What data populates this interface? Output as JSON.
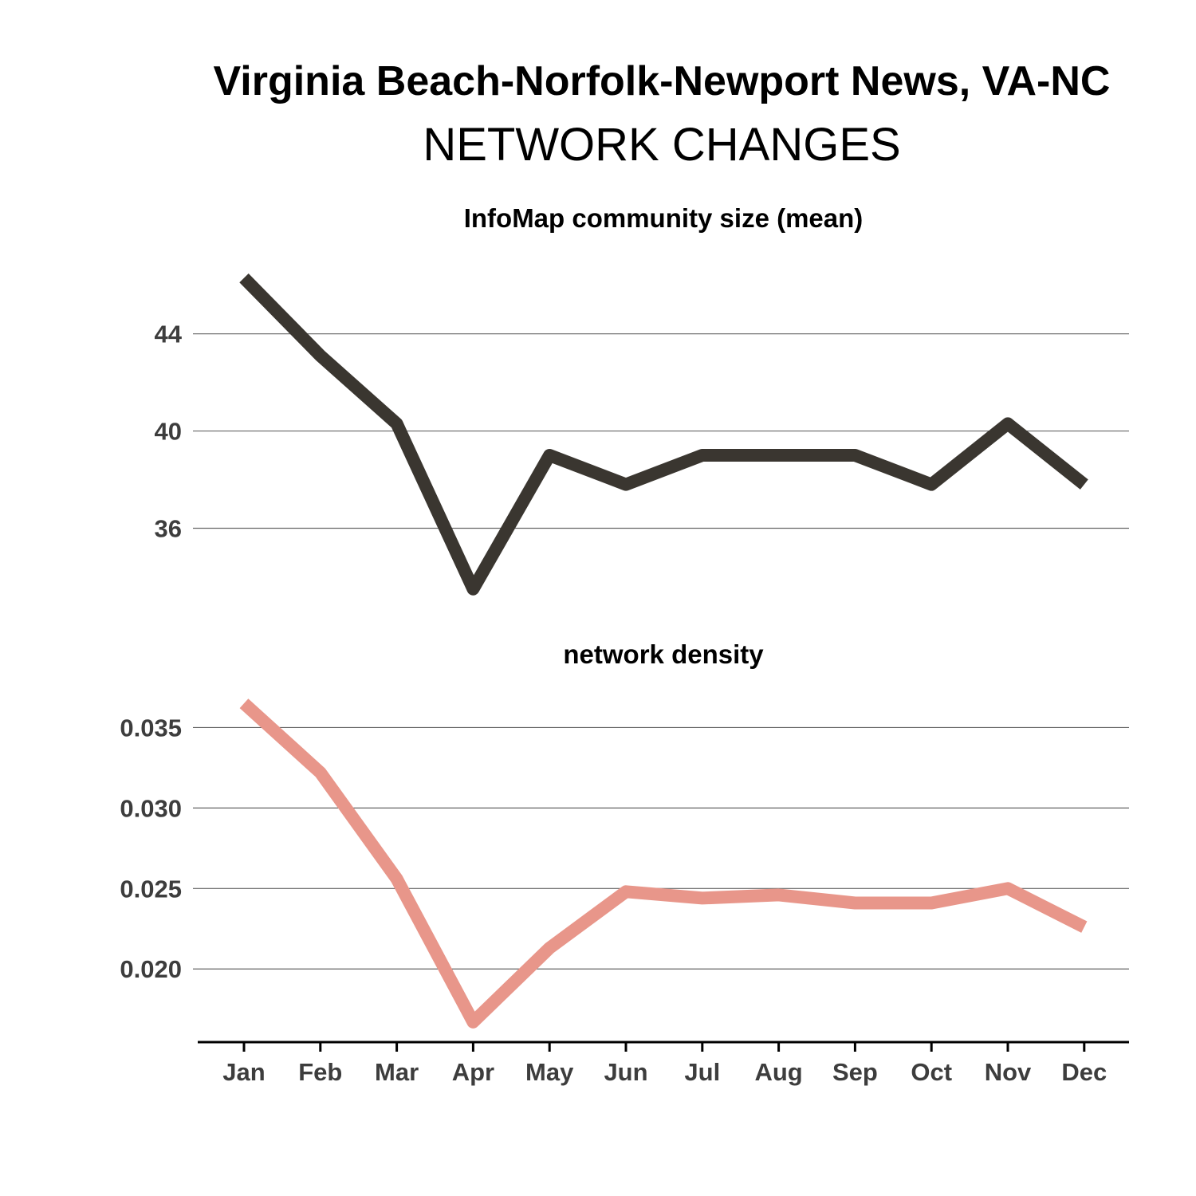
{
  "header": {
    "title": "Virginia Beach-Norfolk-Newport News, VA-NC",
    "subtitle": "NETWORK CHANGES"
  },
  "chart_data": [
    {
      "type": "line",
      "title": "InfoMap community size (mean)",
      "categories": [
        "Jan",
        "Feb",
        "Mar",
        "Apr",
        "May",
        "Jun",
        "Jul",
        "Aug",
        "Sep",
        "Oct",
        "Nov",
        "Dec"
      ],
      "series": [
        {
          "values": [
            46.3,
            43.1,
            40.3,
            33.5,
            39.0,
            37.8,
            39.0,
            39.0,
            39.0,
            37.8,
            40.3,
            37.8
          ]
        }
      ],
      "yticks": [
        "36",
        "40",
        "44"
      ],
      "ytick_values": [
        36,
        40,
        44
      ],
      "ylim": [
        32.8,
        47.5
      ],
      "grid": "horizontal",
      "line_color": "#3a3630"
    },
    {
      "type": "line",
      "title": "network density",
      "categories": [
        "Jan",
        "Feb",
        "Mar",
        "Apr",
        "May",
        "Jun",
        "Jul",
        "Aug",
        "Sep",
        "Oct",
        "Nov",
        "Dec"
      ],
      "series": [
        {
          "values": [
            0.0365,
            0.0322,
            0.0256,
            0.0167,
            0.0213,
            0.0248,
            0.0244,
            0.0246,
            0.0241,
            0.0241,
            0.025,
            0.0226
          ]
        }
      ],
      "yticks": [
        "0.020",
        "0.025",
        "0.030",
        "0.035"
      ],
      "ytick_values": [
        0.02,
        0.025,
        0.03,
        0.035
      ],
      "ylim": [
        0.0158,
        0.0375
      ],
      "grid": "horizontal",
      "line_color": "#e8968a"
    }
  ]
}
